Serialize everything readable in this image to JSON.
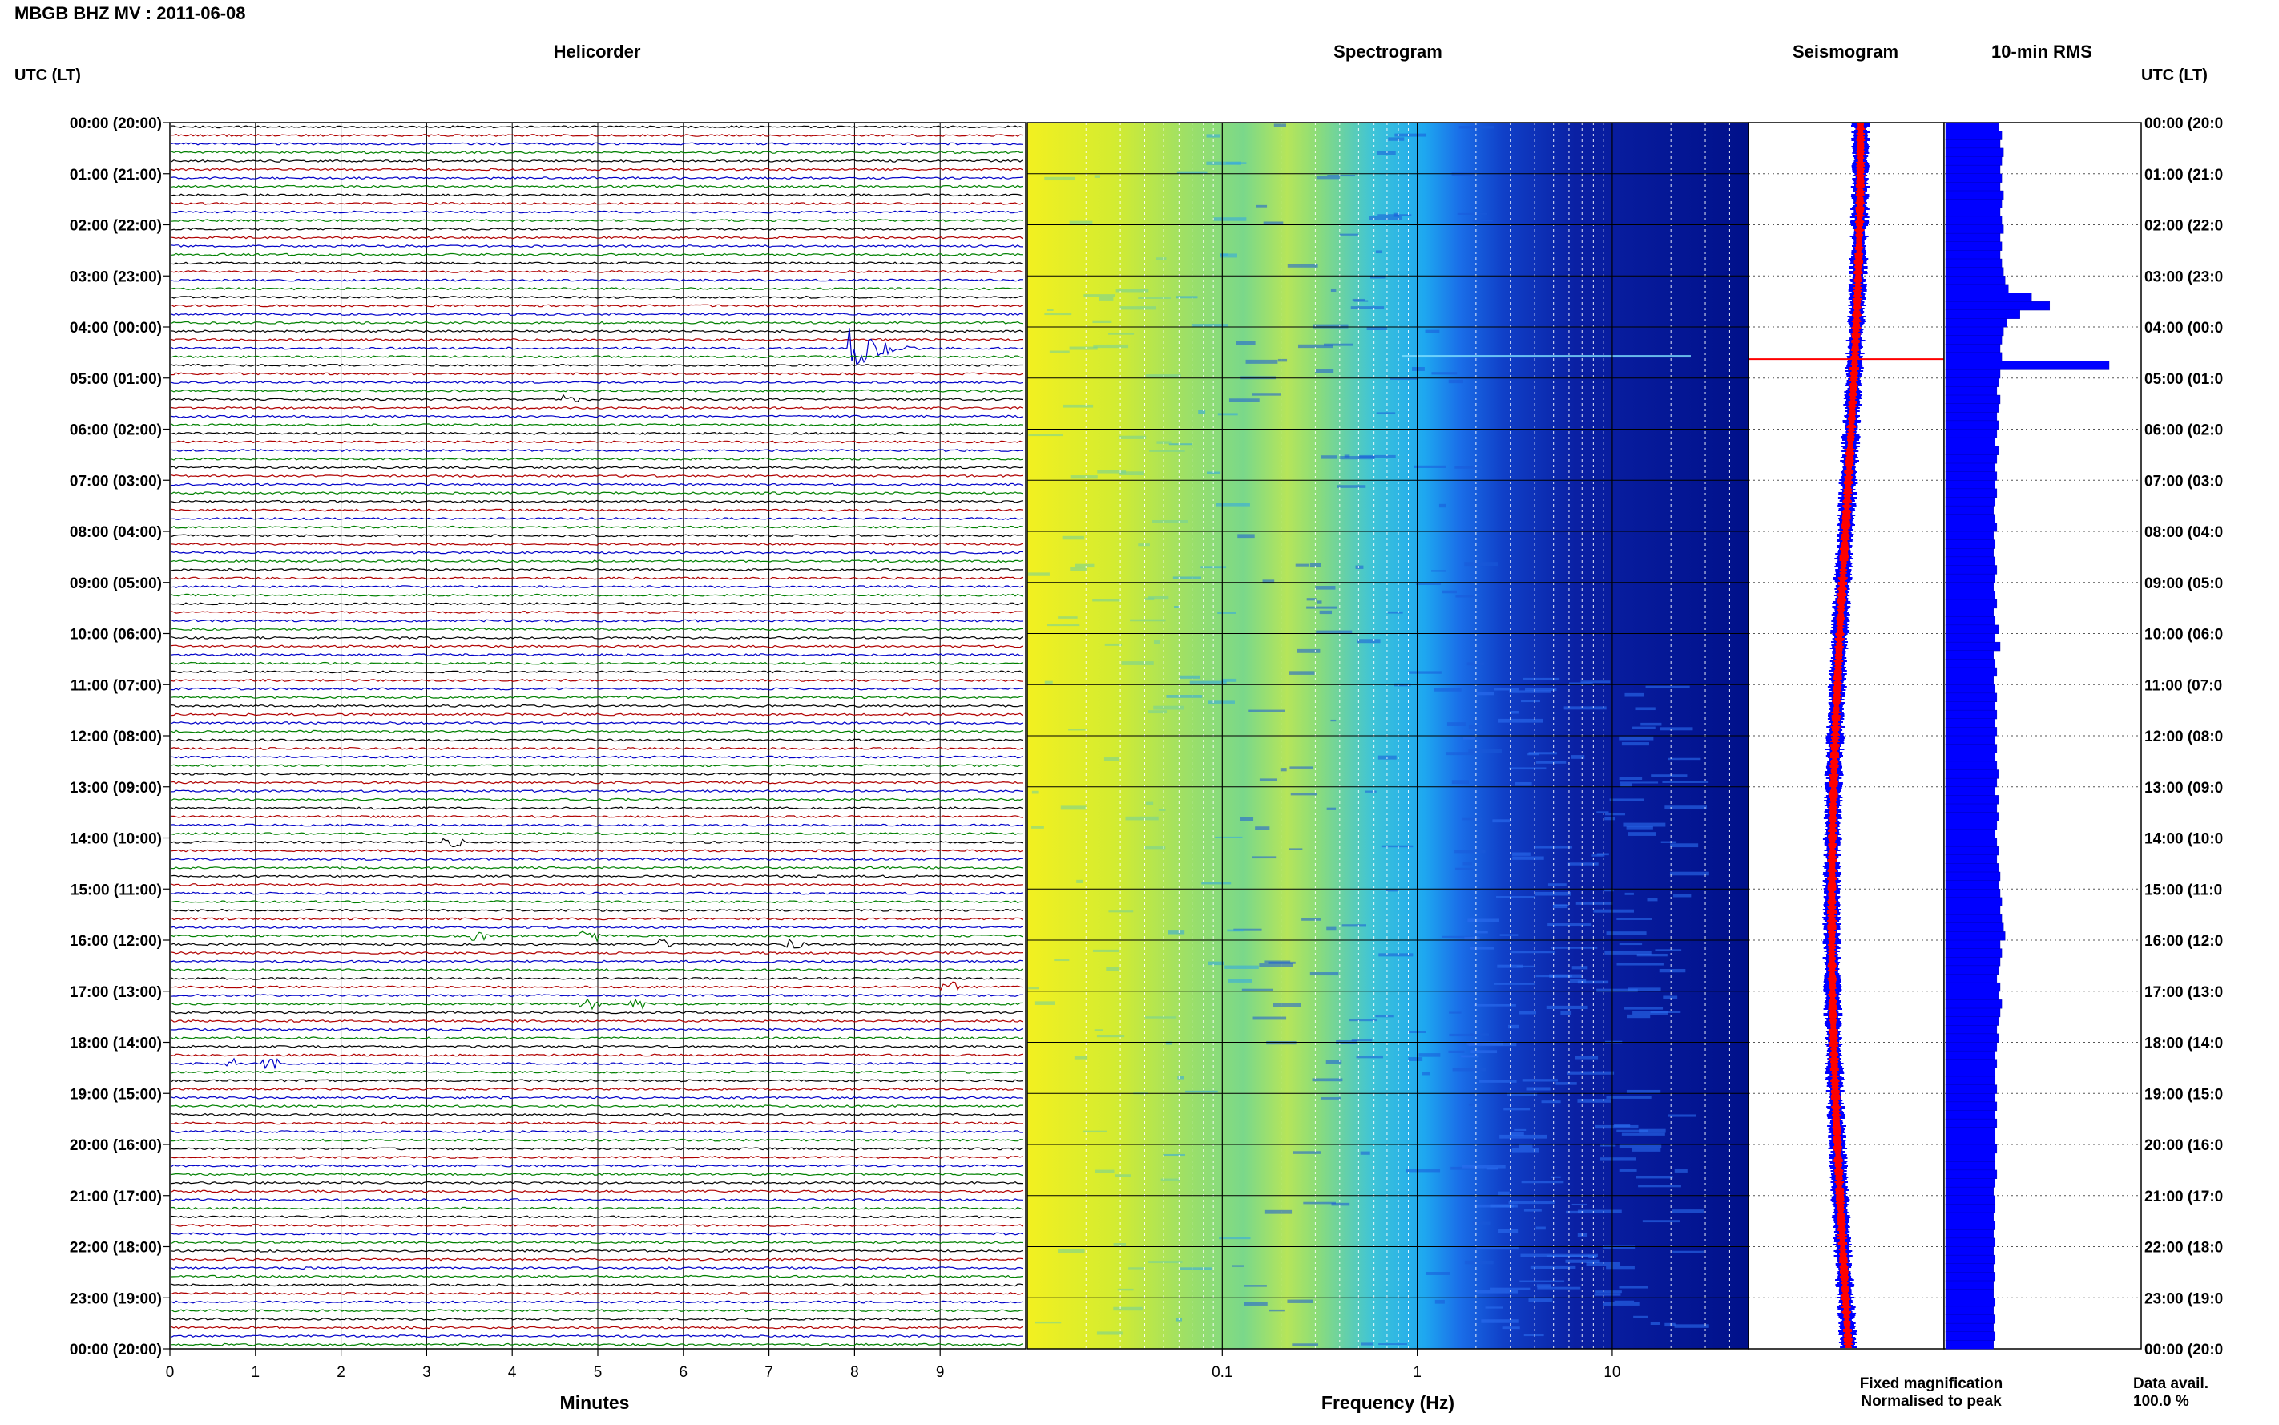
{
  "header": {
    "title": "MBGB BHZ MV : 2011-06-08"
  },
  "panels": {
    "helicorder": "Helicorder",
    "spectrogram": "Spectrogram",
    "seismogram": "Seismogram",
    "rms": "10-min RMS"
  },
  "axis_labels": {
    "time_left": "UTC (LT)",
    "time_right": "UTC (LT)",
    "minutes": "Minutes",
    "frequency": "Frequency (Hz)"
  },
  "legend": {
    "fixed": "Fixed magnification",
    "fixed_color": "#0000ff",
    "normalised": "Normalised to peak",
    "normalised_color": "#ff0000"
  },
  "data_availability": {
    "label": "Data avail.",
    "value": "100.0 %"
  },
  "colors": {
    "trace_cycle": [
      "#000000",
      "#b00000",
      "#0000c8",
      "#008000"
    ],
    "spectrogram_low": "#00007f",
    "spectrogram_mid": "#1e9cff",
    "spectrogram_high": "#ffff00",
    "rms_bar": "#0000ff"
  },
  "chart_data": {
    "type": "helicorder",
    "time_labels_left": [
      "00:00 (20:00)",
      "01:00 (21:00)",
      "02:00 (22:00)",
      "03:00 (23:00)",
      "04:00 (00:00)",
      "05:00 (01:00)",
      "06:00 (02:00)",
      "07:00 (03:00)",
      "08:00 (04:00)",
      "09:00 (05:00)",
      "10:00 (06:00)",
      "11:00 (07:00)",
      "12:00 (08:00)",
      "13:00 (09:00)",
      "14:00 (10:00)",
      "15:00 (11:00)",
      "16:00 (12:00)",
      "17:00 (13:00)",
      "18:00 (14:00)",
      "19:00 (15:00)",
      "20:00 (16:00)",
      "21:00 (17:00)",
      "22:00 (18:00)",
      "23:00 (19:00)",
      "00:00 (20:00)"
    ],
    "time_labels_right": [
      "00:00 (20:0",
      "01:00 (21:0",
      "02:00 (22:0",
      "03:00 (23:0",
      "04:00 (00:0",
      "05:00 (01:0",
      "06:00 (02:0",
      "07:00 (03:0",
      "08:00 (04:0",
      "09:00 (05:0",
      "10:00 (06:0",
      "11:00 (07:0",
      "12:00 (08:0",
      "13:00 (09:0",
      "14:00 (10:0",
      "15:00 (11:0",
      "16:00 (12:0",
      "17:00 (13:0",
      "18:00 (14:0",
      "19:00 (15:0",
      "20:00 (16:0",
      "21:00 (17:0",
      "22:00 (18:0",
      "23:00 (19:0",
      "00:00 (20:0"
    ],
    "minutes_ticks": [
      "0",
      "1",
      "2",
      "3",
      "4",
      "5",
      "6",
      "7",
      "8",
      "9"
    ],
    "minutes_range": [
      0,
      10
    ],
    "frequency_ticks": [
      {
        "label": "0.1",
        "value": 0.1
      },
      {
        "label": "1",
        "value": 1
      },
      {
        "label": "10",
        "value": 10
      }
    ],
    "frequency_range": [
      0.01,
      50
    ],
    "frequency_scale": "log",
    "lines_per_hour": 6,
    "events": [
      {
        "hour": 4,
        "line": 2,
        "minute": 8.0,
        "amplitude": "large"
      },
      {
        "hour": 5,
        "line": 2,
        "minute": 4.7,
        "amplitude": "small"
      },
      {
        "hour": 14,
        "line": 0,
        "minute": 3.3,
        "amplitude": "small"
      },
      {
        "hour": 15,
        "line": 5,
        "minute": 3.6,
        "amplitude": "small"
      },
      {
        "hour": 15,
        "line": 5,
        "minute": 4.9,
        "amplitude": "small"
      },
      {
        "hour": 16,
        "line": 0,
        "minute": 5.8,
        "amplitude": "small"
      },
      {
        "hour": 16,
        "line": 0,
        "minute": 7.3,
        "amplitude": "small"
      },
      {
        "hour": 16,
        "line": 5,
        "minute": 9.1,
        "amplitude": "small"
      },
      {
        "hour": 17,
        "line": 1,
        "minute": 4.9,
        "amplitude": "small"
      },
      {
        "hour": 17,
        "line": 1,
        "minute": 5.5,
        "amplitude": "small"
      },
      {
        "hour": 18,
        "line": 2,
        "minute": 0.7,
        "amplitude": "small"
      },
      {
        "hour": 18,
        "line": 2,
        "minute": 1.2,
        "amplitude": "small"
      }
    ],
    "rms_10min": [
      0.32,
      0.34,
      0.33,
      0.35,
      0.34,
      0.33,
      0.34,
      0.33,
      0.35,
      0.34,
      0.33,
      0.34,
      0.35,
      0.33,
      0.34,
      0.33,
      0.34,
      0.35,
      0.36,
      0.38,
      0.52,
      0.63,
      0.45,
      0.37,
      0.35,
      0.34,
      0.33,
      0.34,
      0.99,
      0.33,
      0.32,
      0.31,
      0.33,
      0.32,
      0.31,
      0.32,
      0.31,
      0.3,
      0.32,
      0.31,
      0.3,
      0.31,
      0.3,
      0.31,
      0.3,
      0.29,
      0.3,
      0.31,
      0.29,
      0.3,
      0.29,
      0.3,
      0.31,
      0.3,
      0.29,
      0.3,
      0.31,
      0.29,
      0.3,
      0.32,
      0.3,
      0.33,
      0.29,
      0.3,
      0.31,
      0.29,
      0.3,
      0.31,
      0.3,
      0.31,
      0.3,
      0.31,
      0.3,
      0.31,
      0.3,
      0.31,
      0.32,
      0.31,
      0.3,
      0.32,
      0.31,
      0.32,
      0.31,
      0.3,
      0.31,
      0.32,
      0.31,
      0.32,
      0.33,
      0.32,
      0.33,
      0.34,
      0.33,
      0.34,
      0.35,
      0.36,
      0.33,
      0.34,
      0.33,
      0.32,
      0.31,
      0.33,
      0.32,
      0.34,
      0.33,
      0.32,
      0.31,
      0.32,
      0.31,
      0.3,
      0.31,
      0.3,
      0.3,
      0.31,
      0.3,
      0.31,
      0.3,
      0.31,
      0.3,
      0.3,
      0.31,
      0.3,
      0.3,
      0.31,
      0.3,
      0.29,
      0.3,
      0.3,
      0.29,
      0.3,
      0.29,
      0.3,
      0.29,
      0.3,
      0.29,
      0.3,
      0.29,
      0.29,
      0.3,
      0.29,
      0.3,
      0.29,
      0.3,
      0.29
    ]
  }
}
